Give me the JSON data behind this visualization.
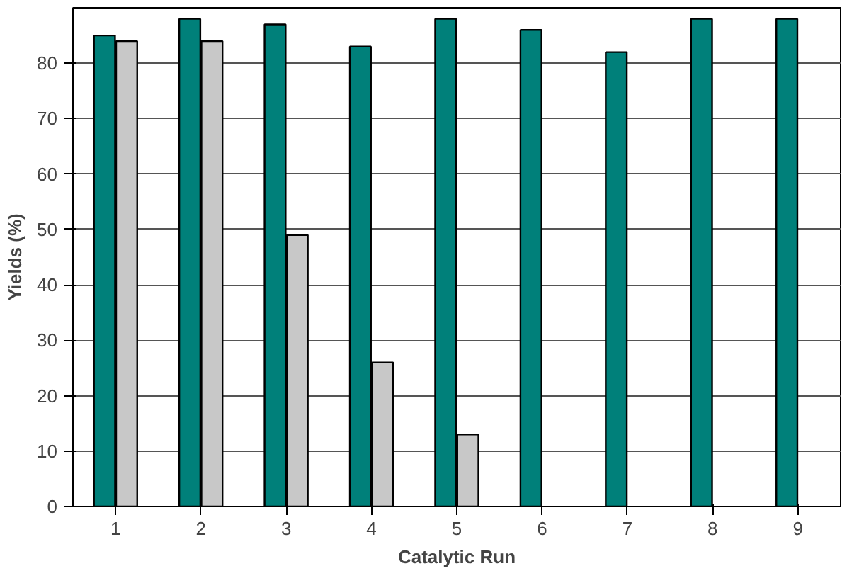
{
  "chart_data": {
    "type": "bar",
    "xlabel": "Catalytic Run",
    "ylabel": "Yields (%)",
    "categories": [
      "1",
      "2",
      "3",
      "4",
      "5",
      "6",
      "7",
      "8",
      "9"
    ],
    "series": [
      {
        "color": "#00807a",
        "values": [
          85,
          88,
          87,
          83,
          88,
          86,
          82,
          88,
          88
        ]
      },
      {
        "color": "#c8c8c8",
        "values": [
          84,
          84,
          49,
          26,
          13,
          null,
          null,
          null,
          null
        ]
      }
    ],
    "ylim": [
      0,
      90
    ],
    "yticks": [
      0,
      10,
      20,
      30,
      40,
      50,
      60,
      70,
      80
    ],
    "grid": "y"
  }
}
